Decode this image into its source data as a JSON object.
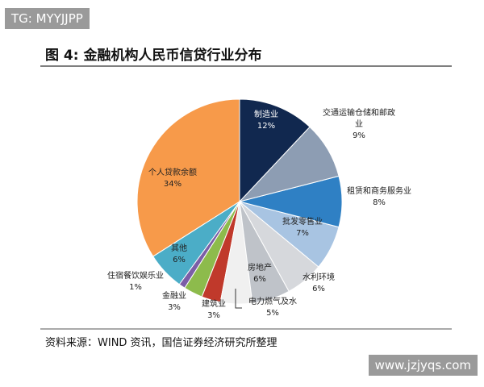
{
  "chart_data": {
    "type": "pie",
    "title": "图 4: 金融机构人民币信贷行业分布",
    "source": "资料来源：WIND 资讯，国信证券经济研究所整理",
    "watermark_top": "TG: MYYJJPP",
    "watermark_bottom": "www.jzjyqs.com",
    "categories": [
      "制造业",
      "交通运输仓储和邮政业",
      "租赁和商务服务业",
      "批发零售业",
      "水利环境",
      "房地产",
      "电力燃气及水",
      "建筑业",
      "金融业",
      "住宿餐饮娱乐业",
      "其他",
      "个人贷款余额"
    ],
    "values": [
      12,
      9,
      8,
      7,
      6,
      6,
      5,
      3,
      3,
      1,
      6,
      34
    ],
    "value_labels": [
      "12%",
      "9%",
      "8%",
      "7%",
      "6%",
      "6%",
      "5%",
      "3%",
      "3%",
      "1%",
      "6%",
      "34%"
    ],
    "colors": [
      "#11284f",
      "#8d9db3",
      "#2f80c4",
      "#a8c4e2",
      "#d6d8dc",
      "#bfc3c9",
      "#f0f0f0",
      "#c0392b",
      "#8dbb4c",
      "#7b5ea7",
      "#4badc7",
      "#f79a4a"
    ]
  }
}
